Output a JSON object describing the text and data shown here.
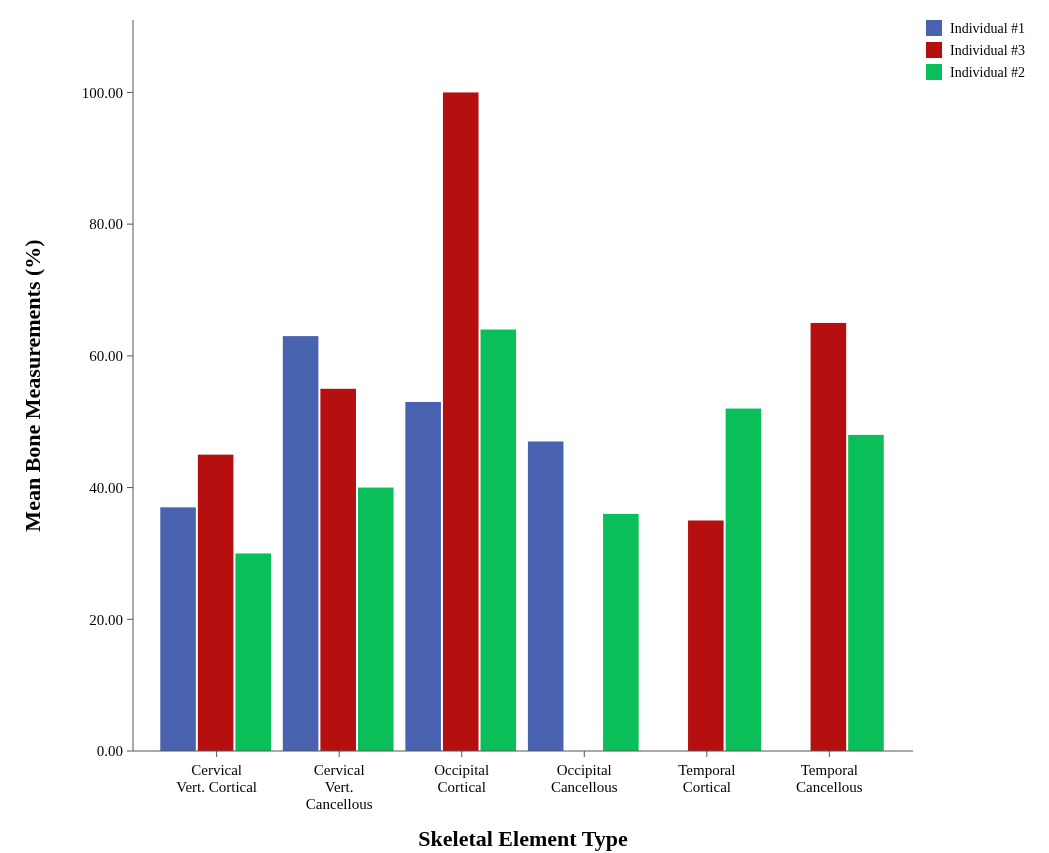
{
  "chart_data": {
    "type": "bar",
    "xlabel": "Skeletal Element Type",
    "ylabel": "Mean Bone Measurements (%)",
    "categories": [
      "Cervical\nVert. Cortical",
      "Cervical\nVert.\nCancellous",
      "Occipital\nCortical",
      "Occipital\nCancellous",
      "Temporal\nCortical",
      "Temporal\nCancellous"
    ],
    "series": [
      {
        "name": "Individual #1",
        "color": "#4a63b0",
        "values": [
          37,
          63,
          53,
          47,
          null,
          null
        ]
      },
      {
        "name": "Individual #3",
        "color": "#b50f0f",
        "values": [
          45,
          55,
          100,
          null,
          35,
          65
        ]
      },
      {
        "name": "Individual #2",
        "color": "#0abf5a",
        "values": [
          30,
          40,
          64,
          36,
          52,
          48
        ]
      }
    ],
    "ylim": [
      0,
      111
    ],
    "yticks": [
      {
        "value": 0,
        "label": "0.00"
      },
      {
        "value": 20,
        "label": "20.00"
      },
      {
        "value": 40,
        "label": "40.00"
      },
      {
        "value": 60,
        "label": "60.00"
      },
      {
        "value": 80,
        "label": "80.00"
      },
      {
        "value": 100,
        "label": "100.00"
      }
    ],
    "legend": "top right",
    "grid": false
  }
}
